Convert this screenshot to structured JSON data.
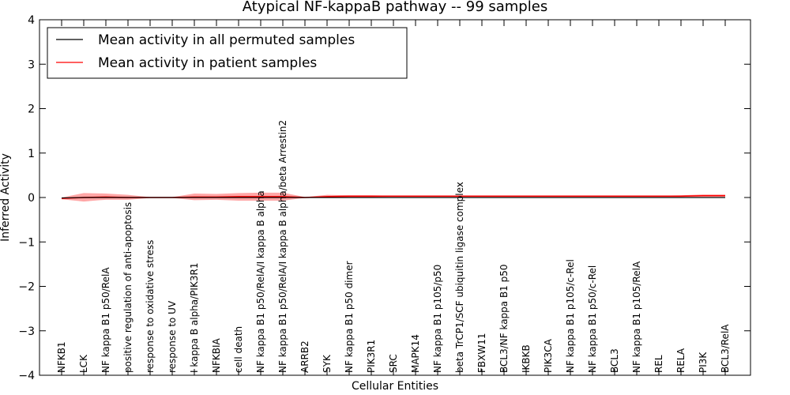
{
  "chart_data": {
    "type": "line",
    "title": "Atypical NF-kappaB pathway -- 99 samples",
    "xlabel": "Cellular Entities",
    "ylabel": "Inferred Activity",
    "ylim": [
      -4,
      4
    ],
    "yticks": [
      -4,
      -3,
      -2,
      -1,
      0,
      1,
      2,
      3,
      4
    ],
    "ytick_labels": [
      "−4",
      "−3",
      "−2",
      "−1",
      "0",
      "1",
      "2",
      "3",
      "4"
    ],
    "grid": false,
    "legend_position": "top-left",
    "categories": [
      "NFKB1",
      "LCK",
      "NF kappa B1 p50/RelA",
      "positive regulation of anti-apoptosis",
      "response to oxidative stress",
      "response to UV",
      "I kappa B alpha/PIK3R1",
      "NFKBIA",
      "cell death",
      "NF kappa B1 p50/RelA/I kappa B alpha",
      "NF kappa B1 p50/RelA/I kappa B alpha/beta Arrestin2",
      "ARRB2",
      "SYK",
      "NF kappa B1 p50 dimer",
      "PIK3R1",
      "SRC",
      "MAPK14",
      "NF kappa B1 p105/p50",
      "beta TrCP1/SCF ubiquitin ligase complex",
      "FBXW11",
      "BCL3/NF kappa B1 p50",
      "IKBKB",
      "PIK3CA",
      "NF kappa B1 p105/c-Rel",
      "NF kappa B1 p50/c-Rel",
      "BCL3",
      "NF kappa B1 p105/RelA",
      "REL",
      "RELA",
      "PI3K",
      "BCL3/RelA"
    ],
    "series": [
      {
        "name": "Mean activity in all permuted samples",
        "color": "#000000",
        "values": [
          -0.01,
          0,
          0,
          0,
          0,
          0,
          0,
          0,
          0,
          0,
          0,
          0,
          0,
          0,
          0,
          0,
          0,
          0,
          0,
          0,
          0,
          0,
          0,
          0,
          0,
          0,
          0,
          0,
          0,
          0,
          0
        ]
      },
      {
        "name": "Mean activity in patient samples",
        "color": "#ff0000",
        "values": [
          -0.02,
          0,
          0.01,
          0,
          0,
          0,
          0.01,
          0.01,
          0.02,
          0.02,
          0.02,
          0,
          0.02,
          0.03,
          0.03,
          0.03,
          0.03,
          0.03,
          0.03,
          0.03,
          0.03,
          0.03,
          0.03,
          0.03,
          0.03,
          0.03,
          0.03,
          0.03,
          0.03,
          0.04,
          0.04
        ],
        "band_upper": [
          0,
          0.1,
          0.09,
          0.06,
          0.01,
          0.01,
          0.09,
          0.08,
          0.1,
          0.11,
          0.11,
          0.01,
          0.06,
          0.05,
          0.05,
          0.04,
          0.04,
          0.04,
          0.04,
          0.04,
          0.04,
          0.04,
          0.04,
          0.04,
          0.04,
          0.04,
          0.04,
          0.04,
          0.05,
          0.07,
          0.07
        ],
        "band_lower": [
          -0.04,
          -0.09,
          -0.05,
          -0.05,
          -0.01,
          -0.01,
          -0.06,
          -0.05,
          -0.07,
          -0.07,
          -0.07,
          -0.01,
          0,
          0.01,
          0.01,
          0.02,
          0.02,
          0.02,
          0.02,
          0.02,
          0.02,
          0.02,
          0.02,
          0.02,
          0.02,
          0.02,
          0.02,
          0.02,
          0.02,
          0.02,
          0.02
        ],
        "band_color": "#ff0000"
      }
    ]
  }
}
